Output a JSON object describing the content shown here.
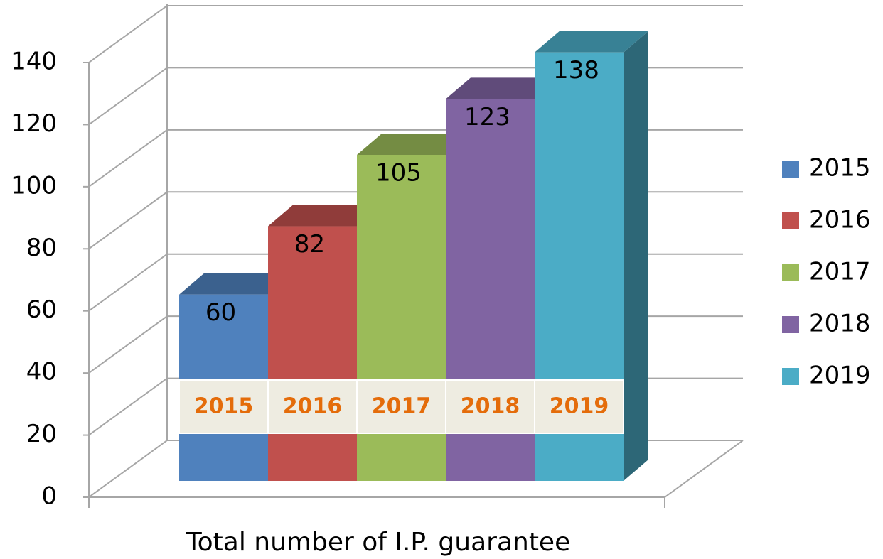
{
  "chart_data": {
    "type": "bar3d",
    "x_label": "Total number of I.P. guarantee",
    "series": [
      {
        "name": "2015",
        "color": "#4f81bd",
        "values": [
          60
        ]
      },
      {
        "name": "2016",
        "color": "#c0504d",
        "values": [
          82
        ]
      },
      {
        "name": "2017",
        "color": "#9bbb59",
        "values": [
          105
        ]
      },
      {
        "name": "2018",
        "color": "#8064a2",
        "values": [
          123
        ]
      },
      {
        "name": "2019",
        "color": "#4bacc6",
        "values": [
          138
        ]
      }
    ],
    "ylim": [
      0,
      140
    ],
    "yticks": [
      0,
      20,
      40,
      60,
      80,
      100,
      120,
      140
    ],
    "grid": true,
    "legend": "right"
  }
}
